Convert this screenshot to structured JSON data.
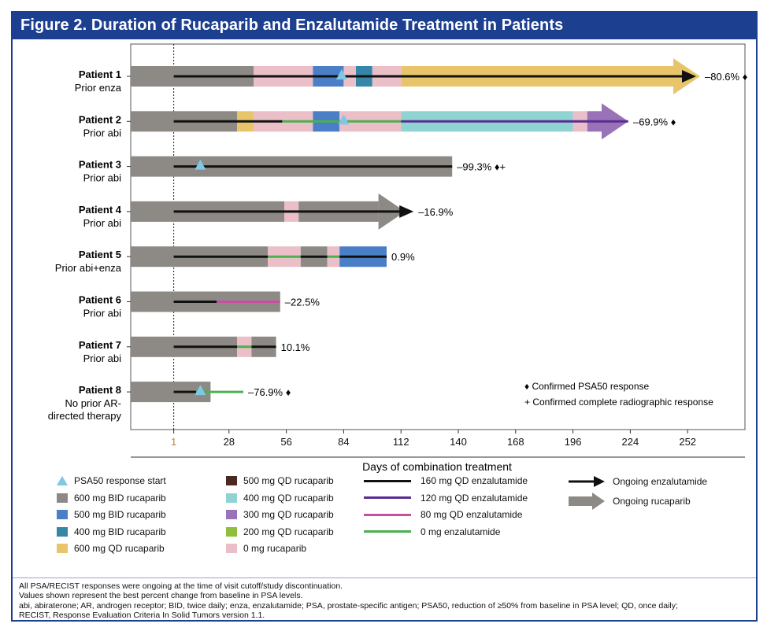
{
  "title": "Figure 2. Duration of Rucaparib and Enzalutamide Treatment in Patients",
  "colors": {
    "frame": "#1d3f8f",
    "rucaparib": {
      "600 mg BID rucaparib": "#8d8a86",
      "500 mg BID rucaparib": "#4a7fc8",
      "400 mg BID rucaparib": "#3686a8",
      "600 mg QD rucaparib": "#e8c56a",
      "500 mg QD rucaparib": "#4a2a20",
      "400 mg QD rucaparib": "#8fd3d3",
      "300 mg QD rucaparib": "#9a72b8",
      "200 mg QD rucaparib": "#8fbd3c",
      "0 mg rucaparib": "#eabfc8"
    },
    "enzalutamide": {
      "160 mg QD enzalutamide": "#111111",
      "120 mg QD enzalutamide": "#5a2d91",
      "80 mg QD enzalutamide": "#c64fa0",
      "0 mg enzalutamide": "#4caf50"
    },
    "psa_marker": "#7ec8e3"
  },
  "chart_data": {
    "type": "swimmer",
    "xlabel": "Days of combination treatment",
    "x_ticks": [
      1,
      28,
      56,
      84,
      112,
      140,
      168,
      196,
      224,
      252
    ],
    "xlim": [
      -20,
      280
    ],
    "reference_day": 1,
    "patients": [
      {
        "name": "Patient 1",
        "prior": "Prior enza",
        "pct_label": "–80.6% ♦",
        "rucaparib": [
          {
            "start": -20,
            "end": 40,
            "dose": "600 mg BID rucaparib"
          },
          {
            "start": 40,
            "end": 69,
            "dose": "0 mg rucaparib"
          },
          {
            "start": 69,
            "end": 84,
            "dose": "500 mg BID rucaparib"
          },
          {
            "start": 84,
            "end": 90,
            "dose": "0 mg rucaparib"
          },
          {
            "start": 90,
            "end": 98,
            "dose": "400 mg BID rucaparib"
          },
          {
            "start": 98,
            "end": 112,
            "dose": "0 mg rucaparib"
          },
          {
            "start": 112,
            "end": 245,
            "dose": "600 mg QD rucaparib"
          }
        ],
        "rucaparib_ongoing": true,
        "enzalutamide": [
          {
            "start": 1,
            "end": 250,
            "dose": "160 mg QD enzalutamide"
          }
        ],
        "enza_ongoing": true,
        "psa50_day": 83
      },
      {
        "name": "Patient 2",
        "prior": "Prior abi",
        "pct_label": "–69.9% ♦",
        "rucaparib": [
          {
            "start": -20,
            "end": 32,
            "dose": "600 mg BID rucaparib"
          },
          {
            "start": 32,
            "end": 40,
            "dose": "600 mg QD rucaparib"
          },
          {
            "start": 40,
            "end": 69,
            "dose": "0 mg rucaparib"
          },
          {
            "start": 69,
            "end": 82,
            "dose": "500 mg BID rucaparib"
          },
          {
            "start": 82,
            "end": 112,
            "dose": "0 mg rucaparib"
          },
          {
            "start": 112,
            "end": 196,
            "dose": "400 mg QD rucaparib"
          },
          {
            "start": 196,
            "end": 203,
            "dose": "0 mg rucaparib"
          },
          {
            "start": 203,
            "end": 210,
            "dose": "300 mg QD rucaparib"
          }
        ],
        "rucaparib_ongoing": true,
        "enzalutamide": [
          {
            "start": 1,
            "end": 54,
            "dose": "160 mg QD enzalutamide"
          },
          {
            "start": 54,
            "end": 84,
            "dose": "0 mg enzalutamide"
          },
          {
            "start": 84,
            "end": 112,
            "dose": "0 mg enzalutamide"
          },
          {
            "start": 112,
            "end": 223,
            "dose": "120 mg QD enzalutamide"
          }
        ],
        "enza_ongoing": false,
        "psa50_day": 84
      },
      {
        "name": "Patient 3",
        "prior": "Prior abi",
        "pct_label": "–99.3% ♦+",
        "rucaparib": [
          {
            "start": -20,
            "end": 137,
            "dose": "600 mg BID rucaparib"
          }
        ],
        "rucaparib_ongoing": false,
        "enzalutamide": [
          {
            "start": 1,
            "end": 137,
            "dose": "160 mg QD enzalutamide"
          }
        ],
        "enza_ongoing": false,
        "psa50_day": 14
      },
      {
        "name": "Patient 4",
        "prior": "Prior abi",
        "pct_label": "–16.9%",
        "rucaparib": [
          {
            "start": -20,
            "end": 55,
            "dose": "600 mg BID rucaparib"
          },
          {
            "start": 55,
            "end": 62,
            "dose": "0 mg rucaparib"
          },
          {
            "start": 62,
            "end": 101,
            "dose": "600 mg BID rucaparib"
          }
        ],
        "rucaparib_ongoing": true,
        "enzalutamide": [
          {
            "start": 1,
            "end": 112,
            "dose": "160 mg QD enzalutamide"
          }
        ],
        "enza_ongoing": true,
        "psa50_day": null
      },
      {
        "name": "Patient 5",
        "prior": "Prior abi+enza",
        "pct_label": "0.9%",
        "rucaparib": [
          {
            "start": -20,
            "end": 47,
            "dose": "600 mg BID rucaparib"
          },
          {
            "start": 47,
            "end": 63,
            "dose": "0 mg rucaparib"
          },
          {
            "start": 63,
            "end": 76,
            "dose": "600 mg BID rucaparib"
          },
          {
            "start": 76,
            "end": 82,
            "dose": "0 mg rucaparib"
          },
          {
            "start": 82,
            "end": 105,
            "dose": "500 mg BID rucaparib"
          }
        ],
        "rucaparib_ongoing": false,
        "enzalutamide": [
          {
            "start": 1,
            "end": 47,
            "dose": "160 mg QD enzalutamide"
          },
          {
            "start": 47,
            "end": 63,
            "dose": "0 mg enzalutamide"
          },
          {
            "start": 63,
            "end": 76,
            "dose": "160 mg QD enzalutamide"
          },
          {
            "start": 76,
            "end": 82,
            "dose": "0 mg enzalutamide"
          },
          {
            "start": 82,
            "end": 105,
            "dose": "160 mg QD enzalutamide"
          }
        ],
        "enza_ongoing": false,
        "psa50_day": null
      },
      {
        "name": "Patient 6",
        "prior": "Prior abi",
        "pct_label": "–22.5%",
        "rucaparib": [
          {
            "start": -20,
            "end": 53,
            "dose": "600 mg BID rucaparib"
          }
        ],
        "rucaparib_ongoing": false,
        "enzalutamide": [
          {
            "start": 1,
            "end": 22,
            "dose": "160 mg QD enzalutamide"
          },
          {
            "start": 22,
            "end": 53,
            "dose": "80 mg QD enzalutamide"
          }
        ],
        "enza_ongoing": false,
        "psa50_day": null
      },
      {
        "name": "Patient 7",
        "prior": "Prior abi",
        "pct_label": "10.1%",
        "rucaparib": [
          {
            "start": -20,
            "end": 32,
            "dose": "600 mg BID rucaparib"
          },
          {
            "start": 32,
            "end": 39,
            "dose": "0 mg rucaparib"
          },
          {
            "start": 39,
            "end": 51,
            "dose": "600 mg BID rucaparib"
          }
        ],
        "rucaparib_ongoing": false,
        "enzalutamide": [
          {
            "start": 1,
            "end": 32,
            "dose": "160 mg QD enzalutamide"
          },
          {
            "start": 32,
            "end": 39,
            "dose": "0 mg enzalutamide"
          },
          {
            "start": 39,
            "end": 51,
            "dose": "160 mg QD enzalutamide"
          }
        ],
        "enza_ongoing": false,
        "psa50_day": null
      },
      {
        "name": "Patient 8",
        "prior": "No prior AR-\ndirected therapy",
        "pct_label": "–76.9% ♦",
        "rucaparib": [
          {
            "start": -20,
            "end": 19,
            "dose": "600 mg BID rucaparib"
          }
        ],
        "rucaparib_ongoing": false,
        "enzalutamide": [
          {
            "start": 1,
            "end": 12,
            "dose": "160 mg QD enzalutamide"
          },
          {
            "start": 12,
            "end": 35,
            "dose": "0 mg enzalutamide"
          }
        ],
        "enza_ongoing": false,
        "psa50_day": 14
      }
    ],
    "inline_key": [
      "♦ Confirmed PSA50 response",
      "+ Confirmed complete radiographic response"
    ]
  },
  "legend": {
    "col1": [
      {
        "label": "PSA50 response start",
        "kind": "triangle",
        "color": "#7ec8e3"
      },
      {
        "label": "600 mg BID rucaparib",
        "kind": "box",
        "color": "#8d8a86"
      },
      {
        "label": "500 mg BID rucaparib",
        "kind": "box",
        "color": "#4a7fc8"
      },
      {
        "label": "400 mg BID rucaparib",
        "kind": "box",
        "color": "#3686a8"
      },
      {
        "label": "600 mg QD rucaparib",
        "kind": "box",
        "color": "#e8c56a"
      }
    ],
    "col2": [
      {
        "label": "500 mg QD rucaparib",
        "kind": "box",
        "color": "#4a2a20"
      },
      {
        "label": "400 mg QD rucaparib",
        "kind": "box",
        "color": "#8fd3d3"
      },
      {
        "label": "300 mg QD rucaparib",
        "kind": "box",
        "color": "#9a72b8"
      },
      {
        "label": "200 mg QD rucaparib",
        "kind": "box",
        "color": "#8fbd3c"
      },
      {
        "label": "0 mg rucaparib",
        "kind": "box",
        "color": "#eabfc8"
      }
    ],
    "col3": [
      {
        "label": "160 mg QD enzalutamide",
        "kind": "line",
        "color": "#111111"
      },
      {
        "label": "120 mg QD enzalutamide",
        "kind": "line",
        "color": "#5a2d91"
      },
      {
        "label": "80 mg QD enzalutamide",
        "kind": "line",
        "color": "#c64fa0"
      },
      {
        "label": "0 mg enzalutamide",
        "kind": "line",
        "color": "#4caf50"
      }
    ],
    "col4": [
      {
        "label": "Ongoing enzalutamide",
        "kind": "black-arrow",
        "color": "#111111"
      },
      {
        "label": "Ongoing rucaparib",
        "kind": "gray-arrow",
        "color": "#8d8a86"
      }
    ]
  },
  "footnotes": [
    "All PSA/RECIST responses were ongoing at the time of visit cutoff/study discontinuation.",
    "Values shown represent the best percent change from baseline in PSA levels.",
    "abi, abiraterone; AR, androgen receptor; BID, twice daily; enza, enzalutamide; PSA, prostate-specific antigen; PSA50, reduction of ≥50% from baseline in PSA level; QD, once daily;",
    "RECIST, Response Evaluation Criteria In Solid Tumors version 1.1."
  ]
}
